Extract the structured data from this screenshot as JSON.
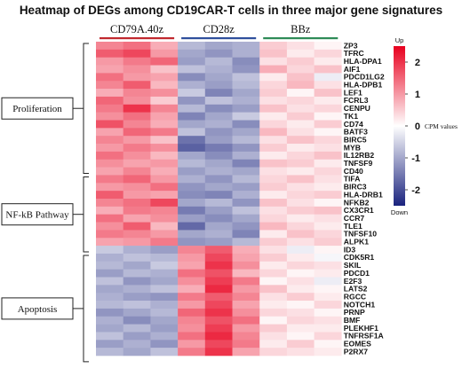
{
  "chart_data": {
    "type": "heatmap",
    "title": "Heatmap of DEGs among CD19CAR-T cells in three major gene signatures",
    "groups": [
      {
        "name": "CD79A.40z",
        "color": "#c0282e"
      },
      {
        "name": "CD28z",
        "color": "#2f4f9c"
      },
      {
        "name": "BBz",
        "color": "#2e8b57"
      }
    ],
    "signatures": [
      {
        "name": "Proliferation",
        "start": 0,
        "end": 16
      },
      {
        "name": "NF-kB Pathway",
        "start": 17,
        "end": 26
      },
      {
        "name": "Apoptosis",
        "start": 27,
        "end": 40
      }
    ],
    "genes": [
      "ZP3",
      "TFRC",
      "HLA-DPA1",
      "AIF1",
      "PDCD1LG2",
      "HLA-DPB1",
      "LEF1",
      "FCRL3",
      "CENPU",
      "TK1",
      "CD74",
      "BATF3",
      "BIRC5",
      "MYB",
      "IL12RB2",
      "TNFSF9",
      "CD40",
      "TIFA",
      "BIRC3",
      "HLA-DRB1",
      "NFKB2",
      "CX3CR1",
      "CCR7",
      "TLE1",
      "TNFSF10",
      "ALPK1",
      "ID3",
      "CDK5R1",
      "SKIL",
      "PDCD1",
      "E2F3",
      "LATS2",
      "RGCC",
      "NOTCH1",
      "PRNP",
      "BMF",
      "PLEKHF1",
      "TNFRSF1A",
      "EOMES",
      "P2RX7"
    ],
    "values": [
      [
        1.2,
        1.4,
        0.8,
        -0.8,
        -1.0,
        -0.9,
        0.5,
        0.3,
        0.1
      ],
      [
        1.6,
        1.8,
        1.0,
        -1.0,
        -1.2,
        -0.9,
        0.6,
        0.2,
        0.4
      ],
      [
        1.0,
        1.3,
        1.5,
        -1.1,
        -0.8,
        -1.3,
        0.3,
        0.5,
        0.2
      ],
      [
        0.9,
        1.1,
        0.6,
        -0.7,
        -0.9,
        -1.2,
        0.8,
        0.4,
        0.6
      ],
      [
        1.4,
        1.0,
        0.9,
        -1.3,
        -1.0,
        -0.7,
        0.2,
        0.6,
        -0.2
      ],
      [
        1.2,
        1.6,
        0.7,
        -0.9,
        -1.1,
        -0.8,
        0.4,
        0.7,
        0.3
      ],
      [
        0.8,
        1.2,
        1.1,
        -0.6,
        -1.4,
        -1.0,
        0.5,
        0.1,
        0.6
      ],
      [
        1.5,
        1.1,
        0.5,
        -1.2,
        -0.7,
        -0.9,
        0.3,
        0.4,
        0.2
      ],
      [
        1.3,
        2.0,
        1.2,
        -0.8,
        -1.3,
        -1.1,
        0.6,
        0.3,
        0.4
      ],
      [
        1.1,
        1.4,
        0.9,
        -1.4,
        -1.0,
        -0.6,
        0.2,
        0.5,
        0.1
      ],
      [
        1.7,
        1.2,
        0.8,
        -1.0,
        -0.9,
        -1.3,
        0.4,
        0.2,
        0.5
      ],
      [
        0.9,
        1.5,
        1.3,
        -0.7,
        -1.2,
        -1.0,
        0.7,
        0.3,
        0.1
      ],
      [
        1.2,
        1.0,
        0.6,
        -1.6,
        -1.1,
        -0.8,
        0.3,
        0.6,
        0.4
      ],
      [
        1.0,
        1.3,
        1.1,
        -1.8,
        -1.5,
        -1.2,
        0.5,
        0.2,
        0.3
      ],
      [
        1.4,
        1.1,
        0.7,
        -1.0,
        -1.3,
        -0.9,
        0.2,
        0.4,
        0.6
      ],
      [
        1.1,
        0.9,
        1.0,
        -0.8,
        -1.0,
        -1.4,
        0.6,
        0.5,
        0.2
      ],
      [
        0.9,
        1.2,
        0.8,
        -1.1,
        -0.9,
        -1.0,
        0.3,
        0.2,
        0.4
      ],
      [
        1.3,
        1.5,
        1.0,
        -0.9,
        -1.2,
        -0.8,
        0.4,
        0.6,
        0.3
      ],
      [
        1.0,
        1.1,
        1.4,
        -1.2,
        -1.0,
        -1.1,
        0.5,
        0.3,
        0.2
      ],
      [
        1.6,
        1.0,
        0.9,
        -1.3,
        -1.4,
        -0.9,
        0.2,
        0.4,
        0.5
      ],
      [
        1.2,
        1.4,
        1.8,
        -1.0,
        -0.8,
        -1.2,
        0.6,
        0.3,
        0.1
      ],
      [
        0.8,
        1.3,
        1.2,
        -1.5,
        -1.1,
        -0.7,
        0.3,
        0.5,
        0.6
      ],
      [
        1.4,
        0.9,
        1.1,
        -1.1,
        -1.3,
        -1.0,
        0.4,
        0.2,
        0.3
      ],
      [
        1.1,
        1.6,
        0.7,
        -1.7,
        -1.0,
        -1.2,
        0.7,
        0.4,
        0.2
      ],
      [
        1.3,
        1.2,
        1.0,
        -1.0,
        -0.9,
        -1.4,
        0.2,
        0.6,
        0.4
      ],
      [
        0.9,
        1.0,
        1.3,
        -1.2,
        -1.1,
        -0.8,
        0.5,
        0.3,
        0.5
      ],
      [
        -0.6,
        -0.9,
        -1.1,
        1.2,
        1.6,
        0.8,
        0.3,
        -0.2,
        0.1
      ],
      [
        -0.9,
        -0.7,
        -0.8,
        1.0,
        1.8,
        0.9,
        0.5,
        0.2,
        -0.1
      ],
      [
        -0.8,
        -1.0,
        -0.6,
        0.9,
        2.0,
        1.1,
        0.2,
        0.4,
        0.3
      ],
      [
        -1.1,
        -0.8,
        -0.9,
        1.4,
        1.7,
        0.7,
        0.4,
        0.1,
        0.2
      ],
      [
        -0.7,
        -1.2,
        -1.0,
        1.1,
        1.9,
        1.3,
        0.1,
        0.3,
        -0.2
      ],
      [
        -1.0,
        -0.9,
        -0.7,
        0.8,
        2.1,
        1.0,
        0.6,
        0.2,
        0.1
      ],
      [
        -0.9,
        -1.1,
        -1.2,
        1.3,
        1.6,
        1.2,
        0.3,
        0.5,
        0.2
      ],
      [
        -0.8,
        -0.7,
        -0.9,
        1.0,
        1.8,
        0.9,
        0.2,
        0.1,
        0.4
      ],
      [
        -1.2,
        -1.0,
        -0.8,
        1.5,
        2.0,
        1.1,
        0.4,
        0.3,
        0.1
      ],
      [
        -0.9,
        -1.3,
        -1.0,
        1.2,
        1.7,
        1.4,
        0.1,
        0.4,
        0.3
      ],
      [
        -1.0,
        -0.8,
        -1.1,
        1.1,
        1.9,
        1.0,
        0.5,
        0.2,
        0.2
      ],
      [
        -0.7,
        -1.1,
        -0.9,
        1.4,
        2.1,
        1.2,
        0.3,
        0.1,
        0.4
      ],
      [
        -1.1,
        -0.9,
        -1.2,
        1.0,
        1.8,
        1.3,
        0.2,
        0.5,
        0.1
      ],
      [
        -0.8,
        -1.0,
        -0.7,
        1.3,
        2.0,
        0.9,
        0.4,
        0.3,
        0.2
      ]
    ],
    "color_scale": {
      "min": -2.5,
      "max": 2.5,
      "low": "#1a237e",
      "mid": "#ffffff",
      "high": "#e8001e"
    },
    "legend": {
      "top_label": "Up",
      "bottom_label": "Down",
      "ticks": [
        "2",
        "1",
        "0",
        "-1",
        "-2"
      ],
      "tick_values": [
        2,
        1,
        0,
        -1,
        -2
      ],
      "value_label": "CPM values",
      "placement": "right"
    }
  }
}
